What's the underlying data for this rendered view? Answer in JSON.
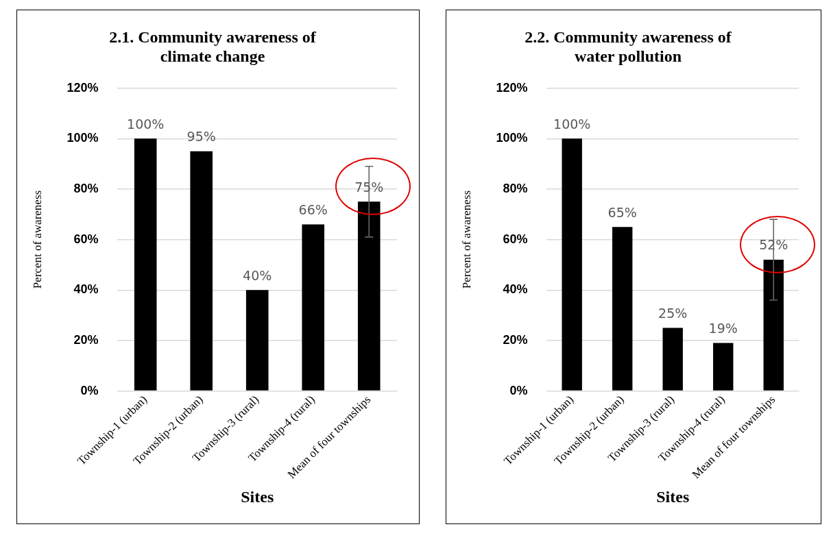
{
  "chart_data": [
    {
      "type": "bar",
      "title": "2.1. Community awareness of climate change",
      "xlabel": "Sites",
      "ylabel": "Percent of awareness",
      "categories": [
        "Township-1 (urban)",
        "Township-2 (urban)",
        "Township-3 (rural)",
        "Township-4 (rural)",
        "Mean of four townships"
      ],
      "values": [
        100,
        95,
        40,
        66,
        75
      ],
      "color": "#000000",
      "errors": [
        null,
        null,
        null,
        null,
        14
      ],
      "value_labels": [
        "100%",
        "95%",
        "40%",
        "66%",
        "75%"
      ],
      "ylim": [
        0,
        120
      ],
      "yticks": [
        {
          "value": 0,
          "label": "0%"
        },
        {
          "value": 20,
          "label": "20%"
        },
        {
          "value": 40,
          "label": "40%"
        },
        {
          "value": 60,
          "label": "60%"
        },
        {
          "value": 80,
          "label": "80%"
        },
        {
          "value": 100,
          "label": "100%"
        },
        {
          "value": 120,
          "label": "120%"
        }
      ],
      "grid": "y"
    },
    {
      "type": "bar",
      "title": "2.2. Community awareness of water pollution",
      "xlabel": "Sites",
      "ylabel": "Percent of awareness",
      "categories": [
        "Township-1 (urban)",
        "Township-2 (urban)",
        "Township-3 (rural)",
        "Township-4 (rural)",
        "Mean of four townships"
      ],
      "values": [
        100,
        65,
        25,
        19,
        52
      ],
      "color": "#000000",
      "errors": [
        null,
        null,
        null,
        null,
        16
      ],
      "value_labels": [
        "100%",
        "65%",
        "25%",
        "19%",
        "52%"
      ],
      "ylim": [
        0,
        120
      ],
      "yticks": [
        {
          "value": 0,
          "label": "0%"
        },
        {
          "value": 20,
          "label": "20%"
        },
        {
          "value": 40,
          "label": "40%"
        },
        {
          "value": 60,
          "label": "60%"
        },
        {
          "value": 80,
          "label": "80%"
        },
        {
          "value": 100,
          "label": "100%"
        },
        {
          "value": 120,
          "label": "120%"
        }
      ],
      "grid": "y"
    }
  ]
}
